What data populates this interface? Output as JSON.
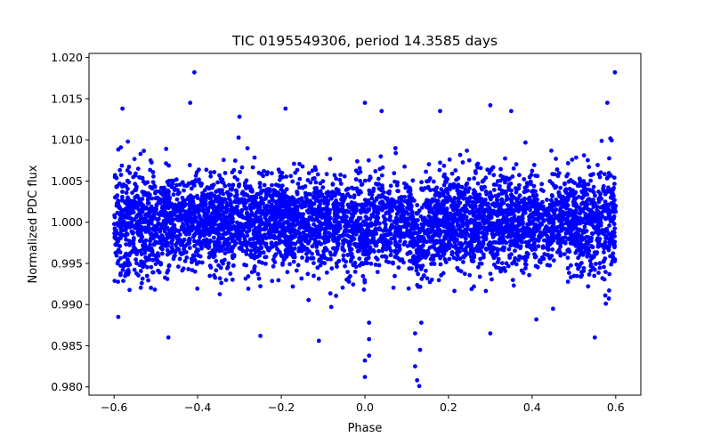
{
  "chart_data": {
    "type": "scatter",
    "title": "TIC 0195549306, period 14.3585 days",
    "xlabel": "Phase",
    "ylabel": "Normalized PDC flux",
    "xlim": [
      -0.66,
      0.66
    ],
    "ylim": [
      0.979,
      1.0205
    ],
    "xticks": [
      -0.6,
      -0.4,
      -0.2,
      0.0,
      0.2,
      0.4,
      0.6
    ],
    "xtick_labels": [
      "−0.6",
      "−0.4",
      "−0.2",
      "0.0",
      "0.2",
      "0.4",
      "0.6"
    ],
    "yticks": [
      0.98,
      0.985,
      0.99,
      0.995,
      1.0,
      1.005,
      1.01,
      1.015,
      1.02
    ],
    "ytick_labels": [
      "0.980",
      "0.985",
      "0.990",
      "0.995",
      "1.000",
      "1.005",
      "1.010",
      "1.015",
      "1.020"
    ],
    "marker_color": "#0000ff",
    "grid": false,
    "series": [
      {
        "name": "PDC flux",
        "sample_points": [
          {
            "x": -0.408,
            "y": 1.0182
          },
          {
            "x": 0.598,
            "y": 1.0182
          },
          {
            "x": -0.418,
            "y": 1.0145
          },
          {
            "x": 0.0,
            "y": 1.0145
          },
          {
            "x": 0.3,
            "y": 1.0142
          },
          {
            "x": 0.58,
            "y": 1.0145
          },
          {
            "x": -0.58,
            "y": 1.0138
          },
          {
            "x": -0.19,
            "y": 1.0138
          },
          {
            "x": 0.04,
            "y": 1.0135
          },
          {
            "x": 0.18,
            "y": 1.0135
          },
          {
            "x": 0.35,
            "y": 1.0135
          },
          {
            "x": -0.3,
            "y": 1.0128
          },
          {
            "x": -0.59,
            "y": 0.9885
          },
          {
            "x": -0.47,
            "y": 0.986
          },
          {
            "x": -0.25,
            "y": 0.9862
          },
          {
            "x": -0.11,
            "y": 0.9856
          },
          {
            "x": 0.0,
            "y": 0.9812
          },
          {
            "x": 0.0,
            "y": 0.9832
          },
          {
            "x": 0.01,
            "y": 0.9838
          },
          {
            "x": 0.01,
            "y": 0.9858
          },
          {
            "x": 0.01,
            "y": 0.9878
          },
          {
            "x": 0.125,
            "y": 0.9808
          },
          {
            "x": 0.13,
            "y": 0.9801
          },
          {
            "x": 0.12,
            "y": 0.9825
          },
          {
            "x": 0.132,
            "y": 0.9845
          },
          {
            "x": 0.12,
            "y": 0.9865
          },
          {
            "x": 0.135,
            "y": 0.9878
          },
          {
            "x": 0.3,
            "y": 0.9865
          },
          {
            "x": 0.41,
            "y": 0.9882
          },
          {
            "x": 0.55,
            "y": 0.986
          }
        ]
      }
    ]
  }
}
